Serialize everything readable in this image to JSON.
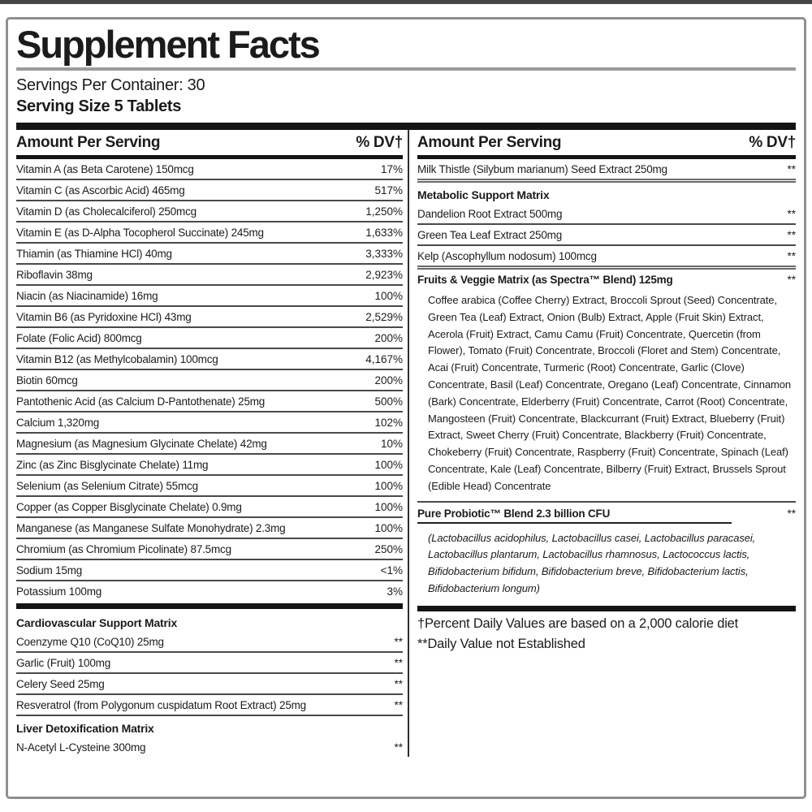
{
  "header": {
    "title": "Supplement Facts",
    "servings_per_container": "Servings Per Container: 30",
    "serving_size": "Serving Size 5 Tablets"
  },
  "columns": {
    "amount_header": "Amount Per Serving",
    "dv_header": "% DV†"
  },
  "left": {
    "blocks": [
      {
        "type": "row",
        "name": "Vitamin A (as Beta Carotene) 150mcg",
        "dv": "17%"
      },
      {
        "type": "row",
        "name": "Vitamin C (as Ascorbic Acid) 465mg",
        "dv": "517%"
      },
      {
        "type": "row",
        "name": "Vitamin D (as Cholecalciferol) 250mcg",
        "dv": "1,250%"
      },
      {
        "type": "row",
        "name": "Vitamin E (as D-Alpha Tocopherol Succinate) 245mg",
        "dv": "1,633%"
      },
      {
        "type": "row",
        "name": "Thiamin (as Thiamine HCl) 40mg",
        "dv": "3,333%"
      },
      {
        "type": "row",
        "name": "Riboflavin 38mg",
        "dv": "2,923%"
      },
      {
        "type": "row",
        "name": "Niacin (as Niacinamide) 16mg",
        "dv": "100%"
      },
      {
        "type": "row",
        "name": "Vitamin B6 (as Pyridoxine HCl) 43mg",
        "dv": "2,529%"
      },
      {
        "type": "row",
        "name": "Folate (Folic Acid) 800mcg",
        "dv": "200%"
      },
      {
        "type": "row",
        "name": "Vitamin B12 (as Methylcobalamin) 100mcg",
        "dv": "4,167%"
      },
      {
        "type": "row",
        "name": "Biotin 60mcg",
        "dv": "200%"
      },
      {
        "type": "row",
        "name": "Pantothenic Acid (as Calcium D-Pantothenate) 25mg",
        "dv": "500%"
      },
      {
        "type": "row",
        "name": "Calcium 1,320mg",
        "dv": "102%"
      },
      {
        "type": "row",
        "name": "Magnesium (as Magnesium Glycinate Chelate) 42mg",
        "dv": "10%"
      },
      {
        "type": "row",
        "name": "Zinc (as Zinc Bisglycinate Chelate) 11mg",
        "dv": "100%"
      },
      {
        "type": "row",
        "name": "Selenium (as Selenium Citrate) 55mcg",
        "dv": "100%"
      },
      {
        "type": "row",
        "name": "Copper (as Copper Bisglycinate Chelate) 0.9mg",
        "dv": "100%"
      },
      {
        "type": "row",
        "name": "Manganese (as Manganese Sulfate Monohydrate) 2.3mg",
        "dv": "100%"
      },
      {
        "type": "row",
        "name": "Chromium (as Chromium Picolinate) 87.5mcg",
        "dv": "250%"
      },
      {
        "type": "row",
        "name": "Sodium 15mg",
        "dv": "<1%"
      },
      {
        "type": "row",
        "name": "Potassium 100mg",
        "dv": "3%",
        "sep": "none"
      },
      {
        "type": "bar"
      },
      {
        "type": "section",
        "title": "Cardiovascular Support Matrix"
      },
      {
        "type": "row",
        "name": "Coenzyme Q10 (CoQ10) 25mg",
        "dv": "**"
      },
      {
        "type": "row",
        "name": "Garlic (Fruit) 100mg",
        "dv": "**"
      },
      {
        "type": "row",
        "name": "Celery Seed 25mg",
        "dv": "**"
      },
      {
        "type": "row",
        "name": "Resveratrol (from Polygonum cuspidatum Root Extract) 25mg",
        "dv": "**"
      },
      {
        "type": "section",
        "title": "Liver Detoxification Matrix"
      },
      {
        "type": "row",
        "name": "N-Acetyl L-Cysteine 300mg",
        "dv": "**",
        "sep": "none"
      }
    ]
  },
  "right": {
    "blocks": [
      {
        "type": "row",
        "name": "Milk Thistle (Silybum marianum) Seed Extract 250mg",
        "dv": "**",
        "sep": "double"
      },
      {
        "type": "section",
        "title": "Metabolic Support Matrix"
      },
      {
        "type": "row",
        "name": "Dandelion Root Extract 500mg",
        "dv": "**"
      },
      {
        "type": "row",
        "name": "Green Tea Leaf Extract 250mg",
        "dv": "**"
      },
      {
        "type": "row",
        "name": "Kelp (Ascophyllum nodosum) 100mcg",
        "dv": "**",
        "sep": "double"
      },
      {
        "type": "row",
        "name": "Fruits & Veggie Matrix (as Spectra™ Blend) 125mg",
        "dv": "**",
        "bold": true,
        "sep": "none"
      },
      {
        "type": "paragraph",
        "sep": "rule",
        "text": "Coffee arabica (Coffee Cherry) Extract, Broccoli Sprout (Seed) Concentrate, Green Tea (Leaf) Extract, Onion (Bulb) Extract, Apple (Fruit Skin) Extract, Acerola (Fruit) Extract, Camu Camu (Fruit) Concentrate, Quercetin (from Flower), Tomato (Fruit) Concentrate, Broccoli (Floret and Stem) Concentrate, Acai (Fruit) Concentrate, Turmeric (Root) Concentrate, Garlic (Clove) Concentrate, Basil (Leaf) Concentrate, Oregano (Leaf) Concentrate, Cinnamon (Bark) Concentrate, Elderberry (Fruit) Concentrate, Carrot (Root) Concentrate, Mangosteen (Fruit) Concentrate, Blackcurrant (Fruit) Extract, Blueberry (Fruit) Extract, Sweet Cherry (Fruit) Concentrate, Blackberry (Fruit) Concentrate, Chokeberry (Fruit) Concentrate, Raspberry (Fruit) Concentrate, Spinach (Leaf) Concentrate, Kale (Leaf) Concentrate, Bilberry (Fruit) Extract, Brussels Sprout (Edible Head) Concentrate"
      },
      {
        "type": "row",
        "name": "Pure Probiotic™ Blend 2.3 billion CFU",
        "dv": "**",
        "bold": true,
        "underline": true,
        "sep": "none"
      },
      {
        "type": "paragraph",
        "italic": true,
        "text": "(Lactobacillus acidophilus, Lactobacillus casei, Lactobacillus paracasei, Lactobacillus plantarum, Lactobacillus rhamnosus, Lactococcus lactis, Bifidobacterium bifidum, Bifidobacterium breve, Bifidobacterium lactis, Bifidobacterium longum)"
      },
      {
        "type": "bar"
      },
      {
        "type": "footnote",
        "text": "†Percent Daily Values are based on a 2,000 calorie diet"
      },
      {
        "type": "footnote",
        "text": "**Daily Value not Established"
      }
    ]
  }
}
